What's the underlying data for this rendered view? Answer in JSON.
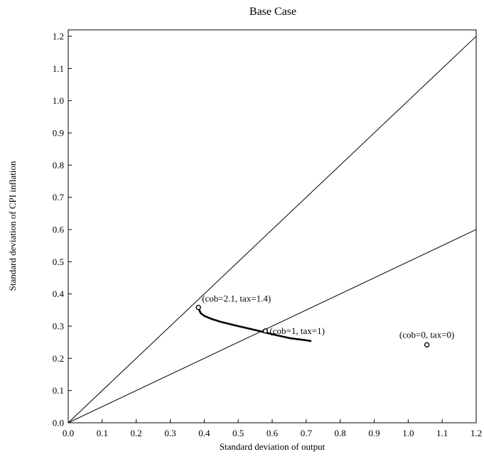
{
  "chart_data": {
    "type": "line",
    "title": "Base Case",
    "xlabel": "Standard deviation of output",
    "ylabel": "Standard deviation of CPI inflation",
    "xlim": [
      0.0,
      1.2
    ],
    "ylim": [
      0.0,
      1.22
    ],
    "xticks": [
      "0.0",
      "0.1",
      "0.2",
      "0.3",
      "0.4",
      "0.5",
      "0.6",
      "0.7",
      "0.8",
      "0.9",
      "1.0",
      "1.1",
      "1.2"
    ],
    "yticks": [
      "0.0",
      "0.1",
      "0.2",
      "0.3",
      "0.4",
      "0.5",
      "0.6",
      "0.7",
      "0.8",
      "0.9",
      "1.0",
      "1.1",
      "1.2"
    ],
    "grid": false,
    "series": [
      {
        "x": [
          0.383,
          0.39,
          0.4,
          0.42,
          0.45,
          0.5,
          0.55,
          0.6,
          0.65,
          0.7,
          0.713
        ],
        "y": [
          0.355,
          0.34,
          0.332,
          0.323,
          0.313,
          0.3,
          0.288,
          0.275,
          0.263,
          0.256,
          0.254
        ],
        "style": "thick"
      },
      {
        "x": [
          0.0,
          1.2
        ],
        "y": [
          0.0,
          1.2
        ],
        "style": "thin"
      },
      {
        "x": [
          0.0,
          1.2
        ],
        "y": [
          0.0,
          0.6
        ],
        "style": "thin"
      }
    ],
    "points": [
      {
        "x": 0.383,
        "y": 0.358,
        "label": "(cob=2.1, tax=1.4)"
      },
      {
        "x": 0.58,
        "y": 0.285,
        "label": "(cob=1, tax=1)"
      },
      {
        "x": 1.055,
        "y": 0.242,
        "label": "(cob=0, tax=0)"
      }
    ]
  }
}
